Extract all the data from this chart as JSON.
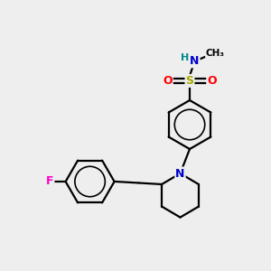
{
  "bg_color": "#eeeeee",
  "atom_colors": {
    "F": "#ff00cc",
    "N": "#0000cc",
    "S": "#aaaa00",
    "O": "#ff0000",
    "H": "#008888",
    "C": "#000000"
  },
  "bond_color": "#000000",
  "bond_width": 1.6,
  "fig_width": 3.0,
  "fig_height": 3.0,
  "dpi": 100
}
